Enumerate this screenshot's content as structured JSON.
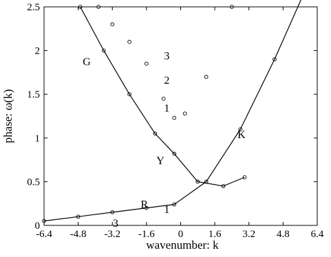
{
  "chart_data": {
    "type": "line",
    "xlabel": "wavenumber: k",
    "ylabel": "phase: ω(k)",
    "xlim": [
      -6.4,
      6.4
    ],
    "ylim": [
      0,
      2.5
    ],
    "xticks": [
      "-6.4",
      "-4.8",
      "-3.2",
      "-1.6",
      "0",
      "1.6",
      "3.2",
      "4.8",
      "6.4"
    ],
    "yticks": [
      "0",
      "0.5",
      "1",
      "1.5",
      "2",
      "2.5"
    ],
    "grid": false,
    "legend": "none",
    "annotations": [
      {
        "text": "G",
        "x": -4.4,
        "y": 1.83
      },
      {
        "text": "3",
        "x": -0.65,
        "y": 1.9
      },
      {
        "text": "2",
        "x": -0.65,
        "y": 1.62
      },
      {
        "text": "1",
        "x": -0.65,
        "y": 1.3
      },
      {
        "text": "Y",
        "x": -0.95,
        "y": 0.7
      },
      {
        "text": "K",
        "x": 2.85,
        "y": 1.0
      },
      {
        "text": "R",
        "x": -1.7,
        "y": 0.2
      },
      {
        "text": "1",
        "x": -0.65,
        "y": 0.14
      },
      {
        "text": "3",
        "x": -3.05,
        "y": -0.015
      }
    ],
    "series": [
      {
        "style": "line-with-markers",
        "x": [
          -6.4,
          -4.8,
          -3.2,
          -1.6,
          -0.3,
          1.2,
          2.8,
          4.4,
          6.4
        ],
        "y": [
          0.05,
          0.1,
          0.15,
          0.2,
          0.24,
          0.5,
          1.1,
          1.9,
          3.0
        ]
      },
      {
        "style": "markers",
        "x": [
          -3.85,
          -3.2,
          -2.4,
          -1.6,
          -0.8,
          -0.3,
          0.2,
          1.2,
          2.4
        ],
        "y": [
          2.5,
          2.3,
          2.1,
          1.85,
          1.45,
          1.23,
          1.28,
          1.7,
          2.5
        ]
      },
      {
        "style": "line-with-markers",
        "x": [
          -4.7,
          -3.6,
          -2.4,
          -1.2,
          -0.3,
          0.8,
          2.0,
          3.0
        ],
        "y": [
          2.5,
          2.0,
          1.5,
          1.05,
          0.82,
          0.5,
          0.45,
          0.55
        ]
      }
    ]
  }
}
